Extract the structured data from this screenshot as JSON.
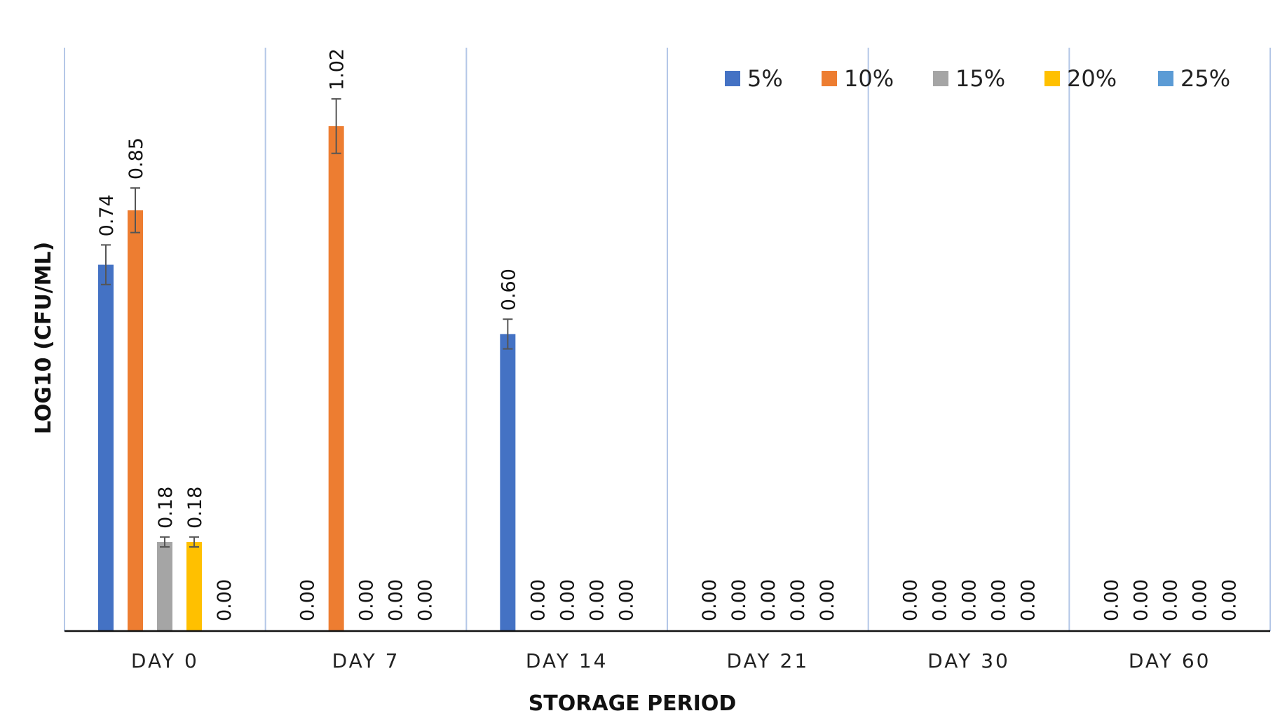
{
  "chart_data": {
    "type": "bar",
    "title": "",
    "xlabel": "STORAGE PERIOD",
    "ylabel": "LOG10 (CFU/ML)",
    "ylim": [
      0,
      1.2
    ],
    "grid": "vertical category separators",
    "legend_position": "top-right",
    "categories": [
      "DAY 0",
      "DAY 7",
      "DAY 14",
      "DAY 21",
      "DAY 30",
      "DAY 60"
    ],
    "series": [
      {
        "name": "5%",
        "color": "#4472C4",
        "values": [
          0.74,
          0.0,
          0.6,
          0.0,
          0.0,
          0.0
        ],
        "errors": [
          0.04,
          0,
          0.03,
          0,
          0,
          0
        ],
        "labels": [
          "0.74",
          "0.00",
          "0.60",
          "0.00",
          "0.00",
          "0.00"
        ]
      },
      {
        "name": "10%",
        "color": "#ED7D31",
        "values": [
          0.85,
          1.02,
          0.0,
          0.0,
          0.0,
          0.0
        ],
        "errors": [
          0.045,
          0.055,
          0,
          0,
          0,
          0
        ],
        "labels": [
          "0.85",
          "1.02",
          "0.00",
          "0.00",
          "0.00",
          "0.00"
        ]
      },
      {
        "name": "15%",
        "color": "#A5A5A5",
        "values": [
          0.18,
          0.0,
          0.0,
          0.0,
          0.0,
          0.0
        ],
        "errors": [
          0.01,
          0,
          0,
          0,
          0,
          0
        ],
        "labels": [
          "0.18",
          "0.00",
          "0.00",
          "0.00",
          "0.00",
          "0.00"
        ]
      },
      {
        "name": "20%",
        "color": "#FFC000",
        "values": [
          0.18,
          0.0,
          0.0,
          0.0,
          0.0,
          0.0
        ],
        "errors": [
          0.01,
          0,
          0,
          0,
          0,
          0
        ],
        "labels": [
          "0.18",
          "0.00",
          "0.00",
          "0.00",
          "0.00",
          "0.00"
        ]
      },
      {
        "name": "25%",
        "color": "#5B9BD5",
        "values": [
          0.0,
          0.0,
          0.0,
          0.0,
          0.0,
          0.0
        ],
        "errors": [
          0,
          0,
          0,
          0,
          0,
          0
        ],
        "labels": [
          "0.00",
          "0.00",
          "0.00",
          "0.00",
          "0.00",
          "0.00"
        ]
      }
    ]
  }
}
